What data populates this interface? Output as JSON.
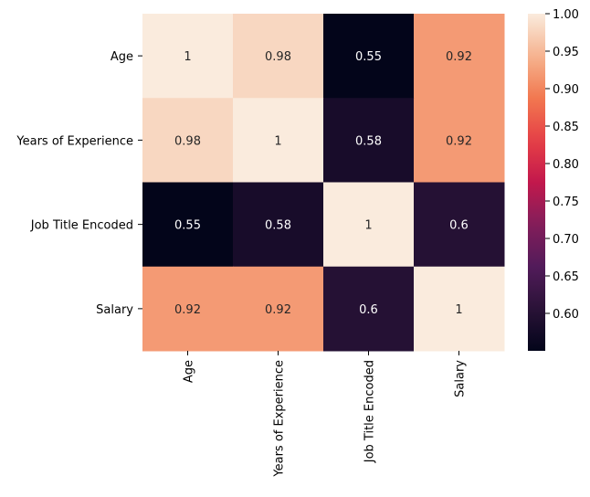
{
  "chart_data": {
    "type": "heatmap",
    "title": "",
    "xlabel": "",
    "ylabel": "",
    "rows": [
      "Age",
      "Years of Experience",
      "Job Title Encoded",
      "Salary"
    ],
    "columns": [
      "Age",
      "Years of Experience",
      "Job Title Encoded",
      "Salary"
    ],
    "values": [
      [
        1.0,
        0.98,
        0.55,
        0.92
      ],
      [
        0.98,
        1.0,
        0.58,
        0.92
      ],
      [
        0.55,
        0.58,
        1.0,
        0.6
      ],
      [
        0.92,
        0.92,
        0.6,
        1.0
      ]
    ],
    "annotations": [
      [
        "1",
        "0.98",
        "0.55",
        "0.92"
      ],
      [
        "0.98",
        "1",
        "0.58",
        "0.92"
      ],
      [
        "0.55",
        "0.58",
        "1",
        "0.6"
      ],
      [
        "0.92",
        "0.92",
        "0.6",
        "1"
      ]
    ],
    "colormap": "rocket",
    "colorbar": {
      "range": [
        0.55,
        1.0
      ],
      "ticks": [
        0.6,
        0.65,
        0.7,
        0.75,
        0.8,
        0.85,
        0.9,
        0.95,
        1.0
      ],
      "tick_labels": [
        "0.60",
        "0.65",
        "0.70",
        "0.75",
        "0.80",
        "0.85",
        "0.90",
        "0.95",
        "1.00"
      ]
    },
    "grid": false,
    "legend": "colorbar-right"
  }
}
